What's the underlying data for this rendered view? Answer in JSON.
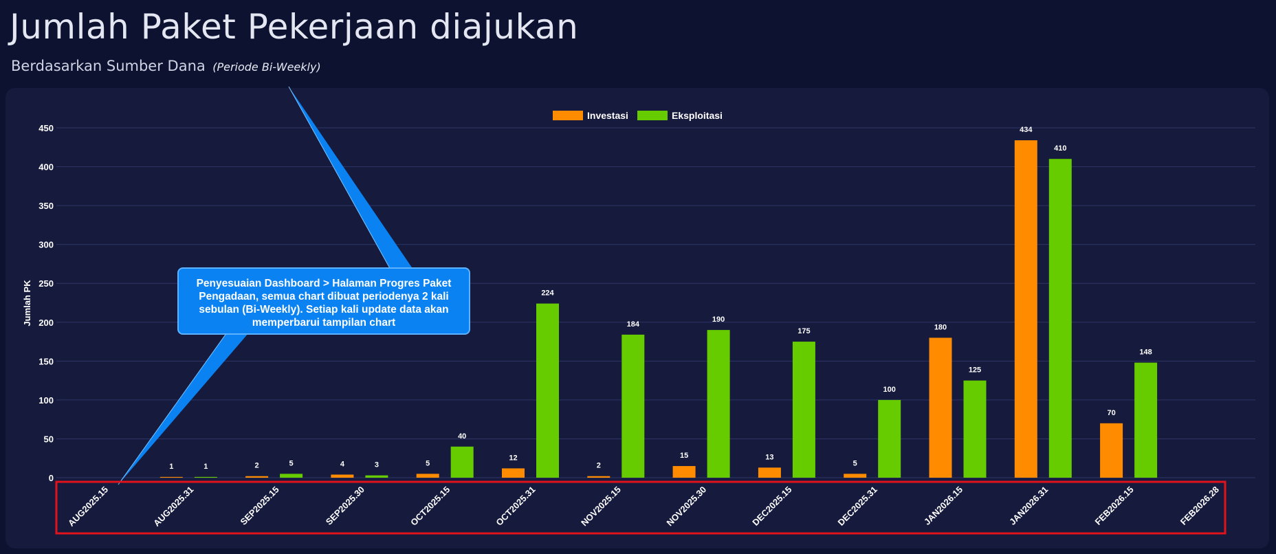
{
  "header": {
    "title": "Jumlah Paket Pekerjaan diajukan",
    "subtitle": "Berdasarkan Sumber Dana",
    "period": "(Periode Bi-Weekly)"
  },
  "callout": {
    "text": "Penyesuaian Dashboard > Halaman Progres Paket Pengadaan, semua chart dibuat periodenya 2 kali sebulan (Bi-Weekly). Setiap kali update data akan memperbarui tampilan chart",
    "color": "#0a82f2"
  },
  "highlight": {
    "color": "#e0121b"
  },
  "chart_data": {
    "type": "bar",
    "ylabel": "Jumlah PK",
    "xlabel": "",
    "ylim": [
      0,
      450
    ],
    "yticks": [
      0,
      50,
      100,
      150,
      200,
      250,
      300,
      350,
      400,
      450
    ],
    "grid": true,
    "legend_position": "top-center",
    "categories": [
      "AUG2025.15",
      "AUG2025.31",
      "SEP2025.15",
      "SEP2025.30",
      "OCT2025.15",
      "OCT2025.31",
      "NOV2025.15",
      "NOV2025.30",
      "DEC2025.15",
      "DEC2025.31",
      "JAN2026.15",
      "JAN2026.31",
      "FEB2026.15",
      "FEB2026.28"
    ],
    "series": [
      {
        "name": "Investasi",
        "color": "#ff8c00",
        "values": [
          null,
          1,
          2,
          4,
          5,
          12,
          2,
          15,
          13,
          5,
          180,
          434,
          70,
          null
        ]
      },
      {
        "name": "Eksploitasi",
        "color": "#66cc00",
        "values": [
          null,
          1,
          5,
          3,
          40,
          224,
          184,
          190,
          175,
          100,
          125,
          410,
          148,
          null
        ]
      }
    ]
  }
}
